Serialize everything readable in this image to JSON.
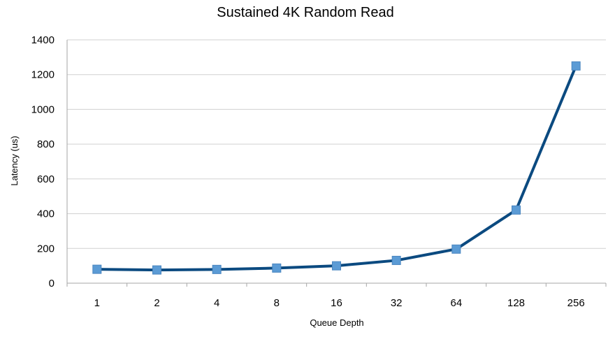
{
  "chart_data": {
    "type": "line",
    "title": "Sustained 4K Random Read",
    "xlabel": "Queue Depth",
    "ylabel": "Latency (us)",
    "categories": [
      "1",
      "2",
      "4",
      "8",
      "16",
      "32",
      "64",
      "128",
      "256"
    ],
    "series": [
      {
        "values": [
          80,
          76,
          79,
          87,
          100,
          131,
          196,
          421,
          1250
        ]
      }
    ],
    "ylim": [
      0,
      1400
    ],
    "yticks": [
      "0",
      "200",
      "400",
      "600",
      "800",
      "1000",
      "1200",
      "1400"
    ],
    "grid": true,
    "legend": "none",
    "colors": {
      "line": "#0b4a80",
      "marker": "#5b9bd5",
      "grid": "#d0d0d0",
      "axis": "#a6a6a6"
    }
  }
}
